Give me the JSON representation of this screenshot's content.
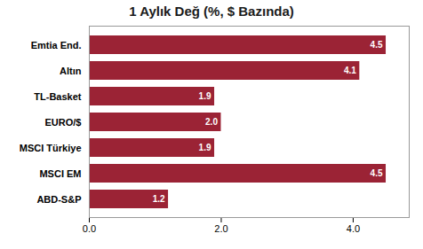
{
  "chart_data": {
    "type": "bar",
    "orientation": "horizontal",
    "title": "1 Aylık Değ (%, $ Bazında)",
    "categories": [
      "ABD-S&P",
      "MSCI EM",
      "MSCI Türkiye",
      "EURO/$",
      "TL-Basket",
      "Altın",
      "Emtia End."
    ],
    "values": [
      1.2,
      4.5,
      1.9,
      2.0,
      1.9,
      4.1,
      4.5
    ],
    "value_labels": [
      "1.2",
      "4.5",
      "1.9",
      "2.0",
      "1.9",
      "4.1",
      "4.5"
    ],
    "color": "#9B2335",
    "xlim": [
      0,
      4.85
    ],
    "xticks": [
      0,
      2,
      4
    ],
    "grid": false,
    "data_labels": true
  }
}
